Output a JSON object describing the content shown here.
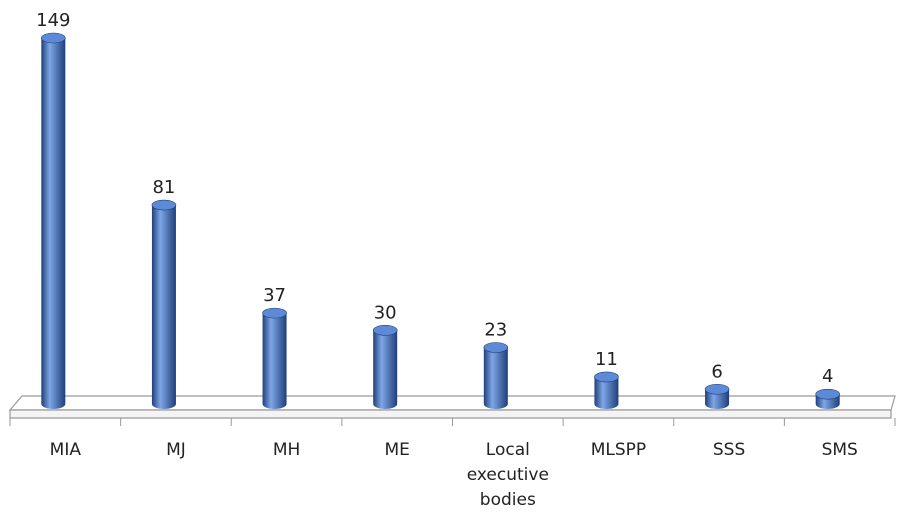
{
  "chart_data": {
    "type": "bar",
    "style": "3d-cylinder",
    "categories": [
      "MIA",
      "MJ",
      "MH",
      "ME",
      "Local executive bodies",
      "MLSPP",
      "SSS",
      "SMS"
    ],
    "category_lines": [
      [
        "MIA"
      ],
      [
        "MJ"
      ],
      [
        "MH"
      ],
      [
        "ME"
      ],
      [
        "Local",
        "executive",
        "bodies"
      ],
      [
        "MLSPP"
      ],
      [
        "SSS"
      ],
      [
        "SMS"
      ]
    ],
    "values": [
      149,
      81,
      37,
      30,
      23,
      11,
      6,
      4
    ],
    "value_labels": [
      "149",
      "81",
      "37",
      "30",
      "23",
      "11",
      "6",
      "4"
    ],
    "ylim": [
      0,
      149
    ],
    "grid": false,
    "legend": "none",
    "colors": {
      "bar": "#3f6fbe",
      "bar_dark": "#1f3f7a",
      "bar_light": "#7ea6e6",
      "bar_top": "#5d8ad6",
      "axis": "#9a9a9a"
    }
  }
}
